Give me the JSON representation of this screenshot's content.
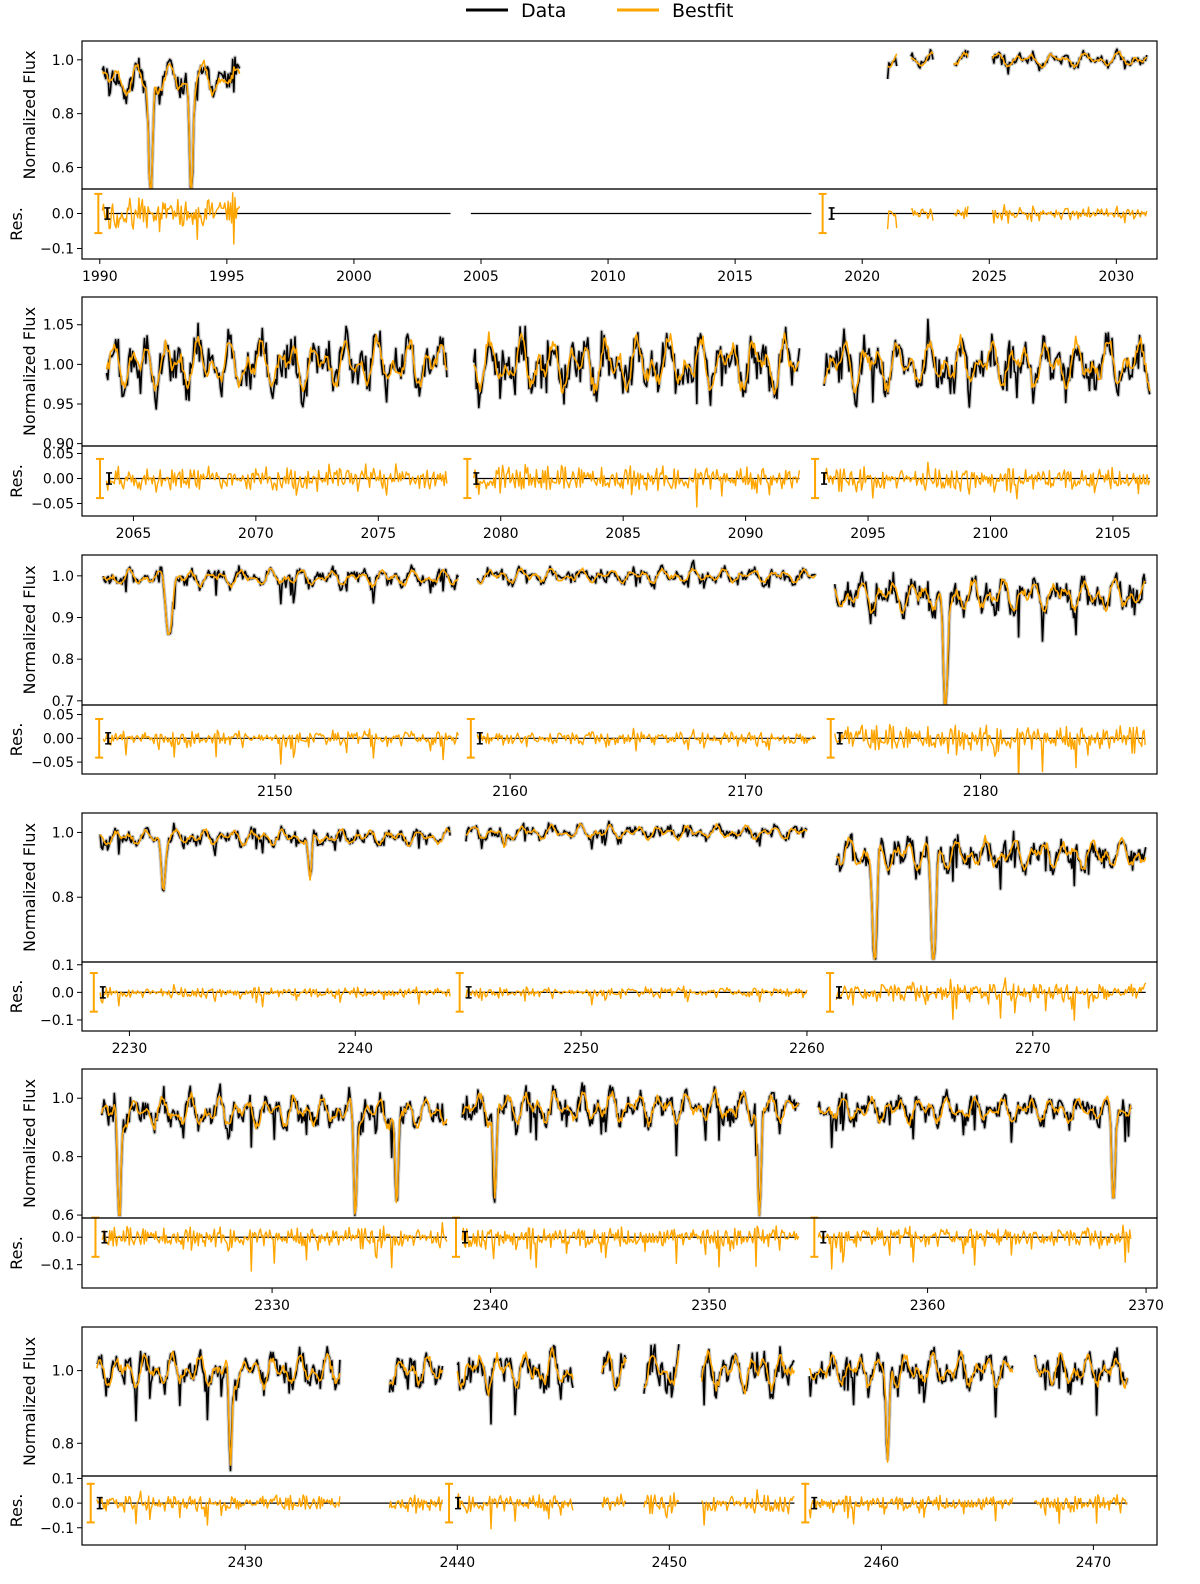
{
  "legend": [
    {
      "label": "Data",
      "color": "#000000"
    },
    {
      "label": "Bestfit",
      "color": "#FFA500"
    }
  ],
  "colors": {
    "data": "#000000",
    "bestfit": "#FFA500",
    "error_band": "#C8C8C8"
  },
  "chart_data": [
    {
      "type": "line",
      "title": "",
      "xlabel": "",
      "ylabel": "Normalized Flux",
      "residual_ylabel": "Res.",
      "xlim": [
        1989.3,
        2031.6
      ],
      "xticks": [
        1990,
        1995,
        2000,
        2005,
        2010,
        2015,
        2020,
        2025,
        2030
      ],
      "ylim": [
        0.52,
        1.07
      ],
      "yticks": [
        0.6,
        0.8,
        1.0
      ],
      "res_ylim": [
        -0.13,
        0.07
      ],
      "res_yticks": [
        -0.1,
        0.0
      ],
      "segments": [
        {
          "x_range": [
            1990.1,
            1995.5
          ],
          "y_range": [
            0.52,
            1.06
          ],
          "dips": [
            {
              "x": 1992.0,
              "depth": 0.48,
              "width": 0.1
            },
            {
              "x": 1993.6,
              "depth": 0.42,
              "width": 0.09
            }
          ],
          "error_bar_at": 1990.1,
          "points": 120
        },
        {
          "x_range": [
            2021.0,
            2031.2
          ],
          "y_range": [
            0.88,
            1.06
          ],
          "dips": [],
          "error_bar_at": 2018.6,
          "points": 200
        }
      ],
      "residual_line_ranges": [
        [
          1990.3,
          2003.8
        ],
        [
          2004.6,
          2018.0
        ],
        [
          2018.8,
          2031.2
        ]
      ],
      "residual_amplitude": 0.05,
      "data_gaps": [
        [
          1995.5,
          2021.0
        ],
        [
          2021.4,
          2021.9
        ],
        [
          2022.8,
          2023.6
        ],
        [
          2024.2,
          2025.1
        ]
      ]
    },
    {
      "type": "line",
      "title": "",
      "xlabel": "",
      "ylabel": "Normalized Flux",
      "residual_ylabel": "Res.",
      "xlim": [
        2062.9,
        2106.8
      ],
      "xticks": [
        2065,
        2070,
        2075,
        2080,
        2085,
        2090,
        2095,
        2100,
        2105
      ],
      "ylim": [
        0.897,
        1.085
      ],
      "yticks": [
        0.9,
        0.95,
        1.0,
        1.05
      ],
      "res_ylim": [
        -0.075,
        0.065
      ],
      "res_yticks": [
        -0.05,
        0.0,
        0.05
      ],
      "segments": [
        {
          "x_range": [
            2063.9,
            2077.8
          ],
          "y_range": [
            0.91,
            1.07
          ],
          "dips": [],
          "error_bar_at": 2063.8,
          "points": 260
        },
        {
          "x_range": [
            2078.9,
            2092.2
          ],
          "y_range": [
            0.9,
            1.08
          ],
          "dips": [],
          "error_bar_at": 2078.8,
          "points": 260
        },
        {
          "x_range": [
            2093.2,
            2106.5
          ],
          "y_range": [
            0.91,
            1.07
          ],
          "dips": [],
          "error_bar_at": 2093.0,
          "points": 260
        }
      ],
      "residual_amplitude": 0.06,
      "data_gaps": []
    },
    {
      "type": "line",
      "title": "",
      "xlabel": "",
      "ylabel": "Normalized Flux",
      "residual_ylabel": "Res.",
      "xlim": [
        2141.8,
        2187.5
      ],
      "xticks": [
        2150,
        2160,
        2170,
        2180
      ],
      "ylim": [
        0.69,
        1.05
      ],
      "yticks": [
        0.7,
        0.8,
        0.9,
        1.0
      ],
      "res_ylim": [
        -0.075,
        0.07
      ],
      "res_yticks": [
        -0.05,
        0.0,
        0.05
      ],
      "segments": [
        {
          "x_range": [
            2142.7,
            2157.8
          ],
          "y_range": [
            0.86,
            1.04
          ],
          "dips": [
            {
              "x": 2145.5,
              "depth": 0.13,
              "width": 0.18
            }
          ],
          "error_bar_at": 2142.7,
          "points": 280
        },
        {
          "x_range": [
            2158.6,
            2173.0
          ],
          "y_range": [
            0.94,
            1.04
          ],
          "dips": [],
          "error_bar_at": 2158.5,
          "points": 260
        },
        {
          "x_range": [
            2173.8,
            2187.0
          ],
          "y_range": [
            0.69,
            1.04
          ],
          "dips": [
            {
              "x": 2178.5,
              "depth": 0.31,
              "width": 0.12
            }
          ],
          "error_bar_at": 2173.8,
          "points": 260
        }
      ],
      "residual_amplitude": 0.06,
      "data_gaps": []
    },
    {
      "type": "line",
      "title": "",
      "xlabel": "",
      "ylabel": "Normalized Flux",
      "residual_ylabel": "Res.",
      "xlim": [
        2227.9,
        2275.5
      ],
      "xticks": [
        2230,
        2240,
        2250,
        2260,
        2270
      ],
      "ylim": [
        0.6,
        1.06
      ],
      "yticks": [
        0.8,
        1.0
      ],
      "res_ylim": [
        -0.14,
        0.11
      ],
      "res_yticks": [
        -0.1,
        0.0,
        0.1
      ],
      "segments": [
        {
          "x_range": [
            2228.7,
            2244.2
          ],
          "y_range": [
            0.82,
            1.04
          ],
          "dips": [
            {
              "x": 2231.5,
              "depth": 0.16,
              "width": 0.12
            },
            {
              "x": 2238.0,
              "depth": 0.15,
              "width": 0.1
            }
          ],
          "error_bar_at": 2228.6,
          "points": 280
        },
        {
          "x_range": [
            2244.9,
            2260.0
          ],
          "y_range": [
            0.92,
            1.05
          ],
          "dips": [
            {
              "x": 2246.6,
              "depth": 0.06,
              "width": 0.1
            }
          ],
          "error_bar_at": 2244.8,
          "points": 260
        },
        {
          "x_range": [
            2261.3,
            2275.0
          ],
          "y_range": [
            0.61,
            1.04
          ],
          "dips": [
            {
              "x": 2263.0,
              "depth": 0.36,
              "width": 0.13
            },
            {
              "x": 2265.6,
              "depth": 0.39,
              "width": 0.13
            }
          ],
          "error_bar_at": 2261.2,
          "points": 260
        }
      ],
      "residual_amplitude": 0.08,
      "data_gaps": []
    },
    {
      "type": "line",
      "title": "",
      "xlabel": "",
      "ylabel": "Normalized Flux",
      "residual_ylabel": "Res.",
      "xlim": [
        2321.3,
        2370.5
      ],
      "xticks": [
        2330,
        2340,
        2350,
        2360,
        2370
      ],
      "ylim": [
        0.59,
        1.1
      ],
      "yticks": [
        0.6,
        0.8,
        1.0
      ],
      "res_ylim": [
        -0.185,
        0.07
      ],
      "res_yticks": [
        -0.1,
        0.0
      ],
      "segments": [
        {
          "x_range": [
            2322.2,
            2338.0
          ],
          "y_range": [
            0.6,
            1.07
          ],
          "dips": [
            {
              "x": 2323.0,
              "depth": 0.42,
              "width": 0.1
            },
            {
              "x": 2333.8,
              "depth": 0.37,
              "width": 0.1
            },
            {
              "x": 2335.7,
              "depth": 0.35,
              "width": 0.1
            }
          ],
          "error_bar_at": 2322.1,
          "points": 300
        },
        {
          "x_range": [
            2338.7,
            2354.1
          ],
          "y_range": [
            0.6,
            1.09
          ],
          "dips": [
            {
              "x": 2340.2,
              "depth": 0.33,
              "width": 0.1
            },
            {
              "x": 2352.3,
              "depth": 0.42,
              "width": 0.1
            }
          ],
          "error_bar_at": 2338.6,
          "points": 300
        },
        {
          "x_range": [
            2355.0,
            2369.3
          ],
          "y_range": [
            0.66,
            1.06
          ],
          "dips": [
            {
              "x": 2368.5,
              "depth": 0.33,
              "width": 0.1
            }
          ],
          "error_bar_at": 2355.0,
          "points": 280
        }
      ],
      "residual_amplitude": 0.08,
      "data_gaps": []
    },
    {
      "type": "line",
      "title": "",
      "xlabel": "",
      "ylabel": "Normalized Flux",
      "residual_ylabel": "Res.",
      "xlim": [
        2422.3,
        2473.0
      ],
      "xticks": [
        2430,
        2440,
        2450,
        2460,
        2470
      ],
      "ylim": [
        0.71,
        1.12
      ],
      "yticks": [
        0.8,
        1.0
      ],
      "res_ylim": [
        -0.17,
        0.11
      ],
      "res_yticks": [
        -0.1,
        0.0,
        0.1
      ],
      "segments": [
        {
          "x_range": [
            2423.0,
            2439.3
          ],
          "y_range": [
            0.72,
            1.1
          ],
          "dips": [
            {
              "x": 2429.3,
              "depth": 0.28,
              "width": 0.1
            }
          ],
          "error_bar_at": 2422.9,
          "points": 300
        },
        {
          "x_range": [
            2440.0,
            2455.9
          ],
          "y_range": [
            0.75,
            1.12
          ],
          "dips": [],
          "error_bar_at": 2439.8,
          "points": 280
        },
        {
          "x_range": [
            2456.6,
            2471.6
          ],
          "y_range": [
            0.73,
            1.1
          ],
          "dips": [
            {
              "x": 2460.3,
              "depth": 0.26,
              "width": 0.1
            }
          ],
          "error_bar_at": 2456.6,
          "points": 280
        }
      ],
      "residual_amplitude": 0.08,
      "data_gaps": [
        [
          2434.5,
          2436.8
        ],
        [
          2445.5,
          2446.8
        ],
        [
          2448.0,
          2448.8
        ],
        [
          2450.5,
          2451.5
        ],
        [
          2466.2,
          2467.2
        ]
      ]
    }
  ]
}
